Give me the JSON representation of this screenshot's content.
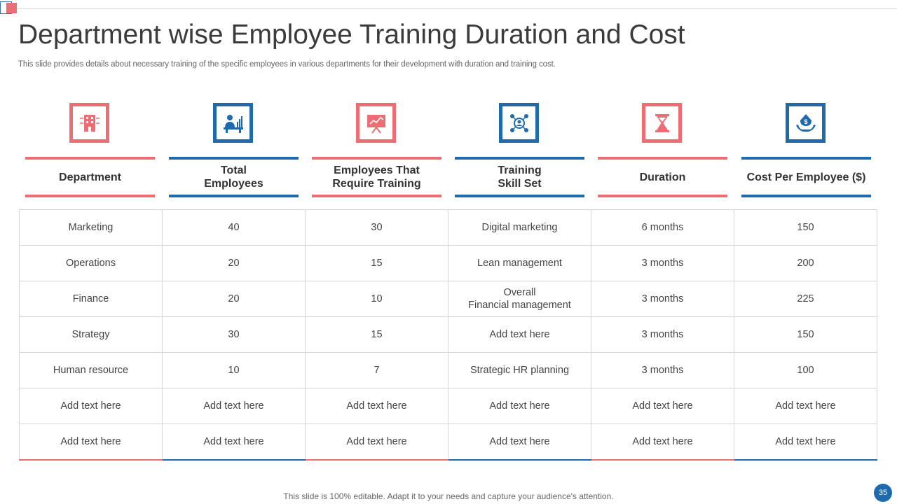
{
  "slide": {
    "title": "Department wise Employee Training Duration and Cost",
    "subtitle": "This slide provides details about necessary training of the specific employees in various departments for their development with duration and training cost.",
    "footer": "This slide is 100% editable. Adapt it to your needs and capture your audience's attention.",
    "page_number": "35"
  },
  "colors": {
    "accent_red": "#ec6d73",
    "accent_blue": "#1e6aad"
  },
  "columns": [
    {
      "label": "Department",
      "icon": "building-icon"
    },
    {
      "label": "Total\nEmployees",
      "icon": "employee-desk-icon"
    },
    {
      "label": "Employees That\nRequire Training",
      "icon": "presentation-board-icon"
    },
    {
      "label": "Training\nSkill Set",
      "icon": "skills-network-icon"
    },
    {
      "label": "Duration",
      "icon": "hourglass-icon"
    },
    {
      "label": "Cost Per Employee ($)",
      "icon": "money-hand-icon"
    }
  ],
  "rows": [
    [
      "Marketing",
      "40",
      "30",
      "Digital marketing",
      "6 months",
      "150"
    ],
    [
      "Operations",
      "20",
      "15",
      "Lean management",
      "3 months",
      "200"
    ],
    [
      "Finance",
      "20",
      "10",
      "Overall\nFinancial management",
      "3 months",
      "225"
    ],
    [
      "Strategy",
      "30",
      "15",
      "Add text here",
      "3 months",
      "150"
    ],
    [
      "Human resource",
      "10",
      "7",
      "Strategic HR planning",
      "3 months",
      "100"
    ],
    [
      "Add text here",
      "Add text here",
      "Add text here",
      "Add text here",
      "Add text here",
      "Add text here"
    ],
    [
      "Add text here",
      "Add text here",
      "Add text here",
      "Add text here",
      "Add text here",
      "Add text here"
    ]
  ]
}
